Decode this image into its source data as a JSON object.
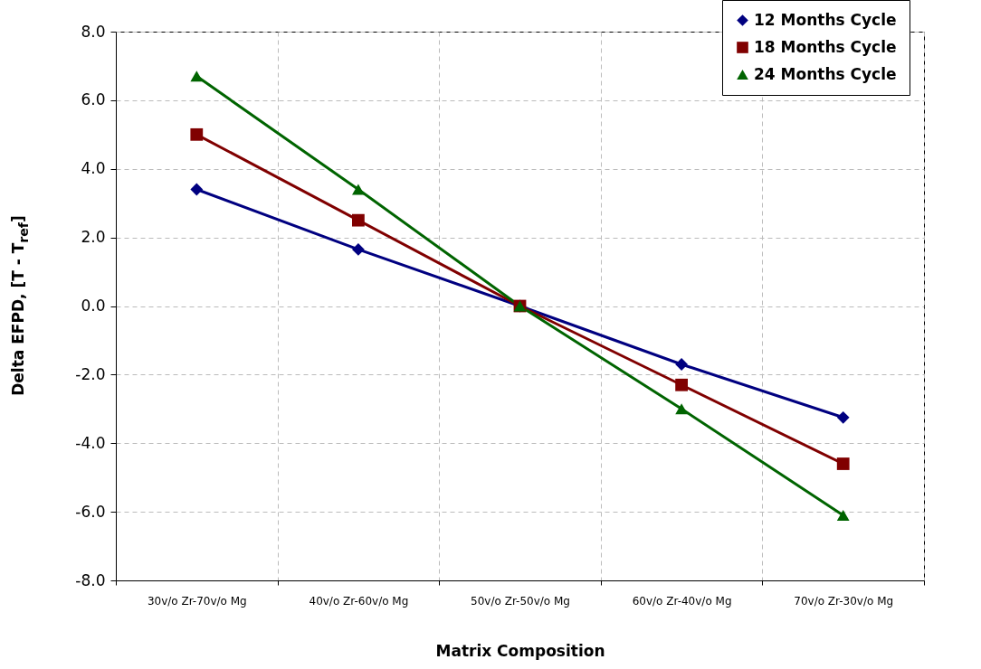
{
  "chart_data": {
    "type": "line",
    "xlabel": "Matrix Composition",
    "ylabel": "Delta EFPD, [T - T$_{ref}$]",
    "categories": [
      "30v/o Zr-70v/o Mg",
      "40v/o Zr-60v/o Mg",
      "50v/o Zr-50v/o Mg",
      "60v/o Zr-40v/o Mg",
      "70v/o Zr-30v/o Mg"
    ],
    "series": [
      {
        "name": "12 Months Cycle",
        "color": "#000080",
        "marker": "diamond",
        "values": [
          3.4,
          1.65,
          0,
          -1.7,
          -3.25
        ]
      },
      {
        "name": "18 Months Cycle",
        "color": "#800000",
        "marker": "square",
        "values": [
          5.0,
          2.5,
          0,
          -2.3,
          -4.6
        ]
      },
      {
        "name": "24 Months Cycle",
        "color": "#006400",
        "marker": "triangle",
        "values": [
          6.7,
          3.4,
          0,
          -3.0,
          -6.1
        ]
      }
    ],
    "ylim": [
      -8,
      8
    ],
    "yticks": [
      {
        "value": -8,
        "label": "-8.0"
      },
      {
        "value": -6,
        "label": "-6.0"
      },
      {
        "value": -4,
        "label": "-4.0"
      },
      {
        "value": -2,
        "label": "-2.0"
      },
      {
        "value": 0,
        "label": "0.0"
      },
      {
        "value": 2,
        "label": "2.0"
      },
      {
        "value": 4,
        "label": "4.0"
      },
      {
        "value": 6,
        "label": "6.0"
      },
      {
        "value": 8,
        "label": "8.0"
      }
    ],
    "grid": true,
    "legend": "top right",
    "line_style": "solid"
  }
}
